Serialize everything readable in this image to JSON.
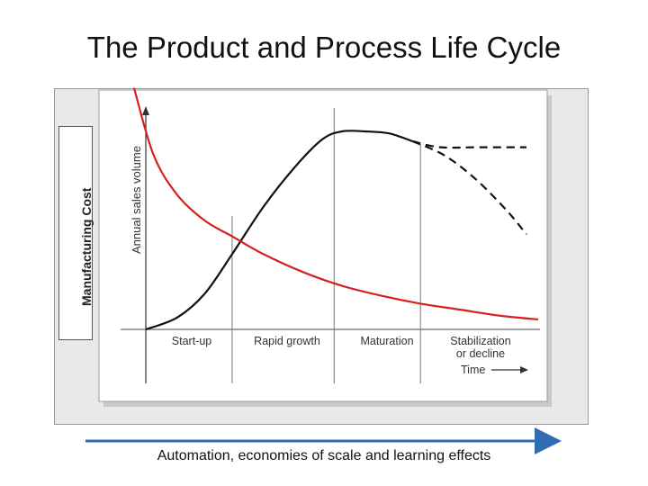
{
  "title": "The Product and Process Life Cycle",
  "y_outer_label": "Manufacturing Cost",
  "y_inner_label": "Annual sales volume",
  "x_label": "Time",
  "stages": [
    "Start-up",
    "Rapid growth",
    "Maturation",
    "Stabilization",
    "or decline"
  ],
  "caption": "Automation, economies of scale and learning effects",
  "colors": {
    "sales_curve": "#111111",
    "cost_curve": "#d42020",
    "arrow": "#2f6db5"
  },
  "chart_data": {
    "type": "line",
    "title": "The Product and Process Life Cycle",
    "xlabel": "Time",
    "ylabel": "Annual sales volume",
    "xlim": [
      0,
      100
    ],
    "ylim": [
      0,
      100
    ],
    "stage_boundaries": [
      22,
      48,
      70
    ],
    "series": [
      {
        "name": "Annual sales volume",
        "style": "solid",
        "x": [
          0,
          8,
          15,
          22,
          30,
          38,
          45,
          50,
          56,
          62,
          68
        ],
        "y": [
          0,
          6,
          18,
          38,
          62,
          82,
          96,
          100,
          100,
          99,
          95
        ]
      },
      {
        "name": "Annual sales volume (stabilization)",
        "style": "dashed",
        "x": [
          68,
          75,
          85,
          97
        ],
        "y": [
          95,
          92,
          92,
          92
        ]
      },
      {
        "name": "Annual sales volume (decline)",
        "style": "dashed",
        "x": [
          68,
          76,
          84,
          92,
          97
        ],
        "y": [
          95,
          88,
          76,
          60,
          48
        ]
      },
      {
        "name": "Manufacturing cost",
        "style": "solid",
        "x": [
          -3,
          2,
          8,
          15,
          22,
          30,
          40,
          50,
          60,
          70,
          80,
          90,
          100
        ],
        "y": [
          122,
          88,
          68,
          55,
          47,
          38,
          29,
          22,
          17,
          13,
          10,
          7,
          5
        ]
      }
    ]
  }
}
